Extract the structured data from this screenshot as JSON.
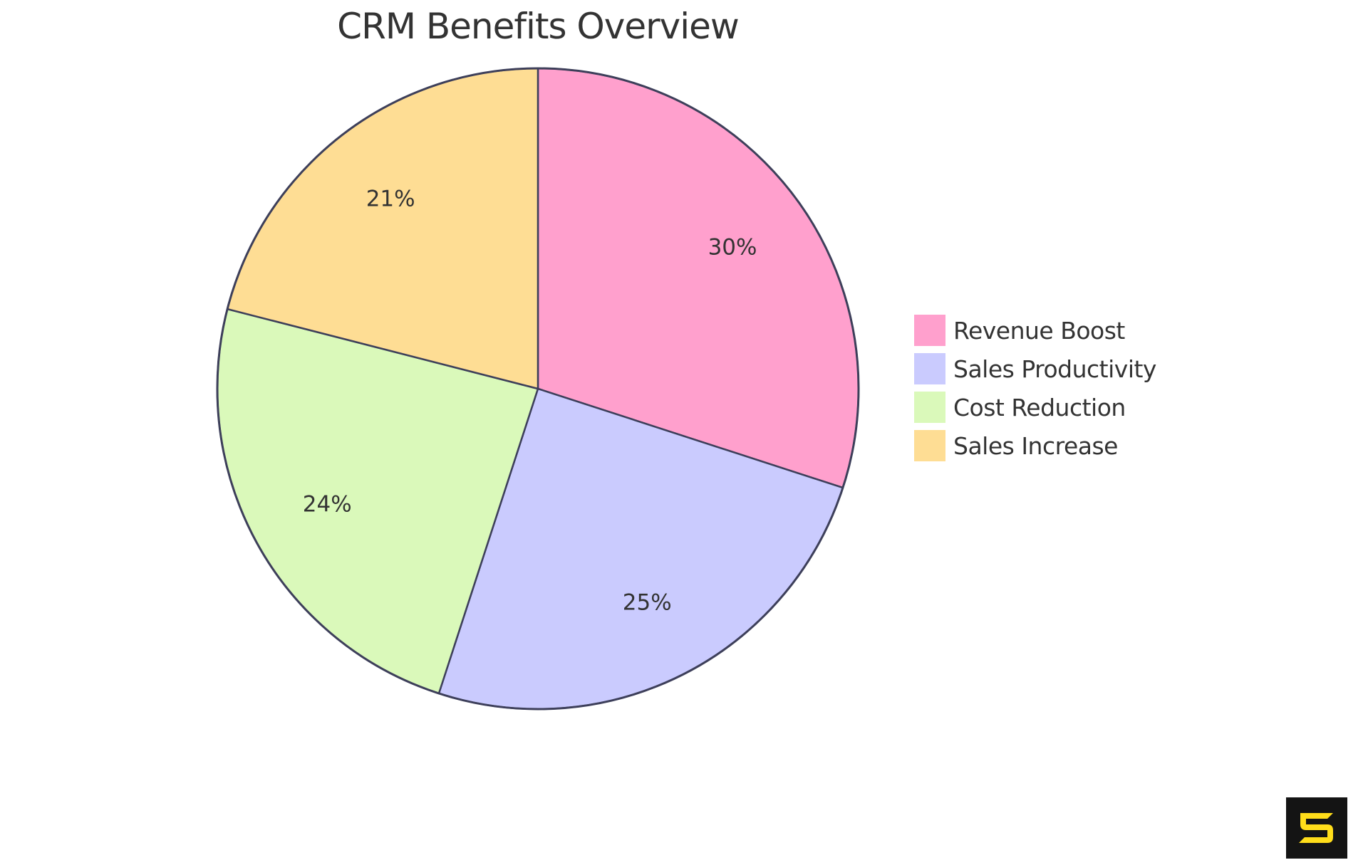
{
  "chart_data": {
    "type": "pie",
    "title": "CRM Benefits Overview",
    "categories": [
      "Revenue Boost",
      "Sales Productivity",
      "Cost Reduction",
      "Sales Increase"
    ],
    "values": [
      30,
      25,
      24,
      21
    ],
    "labels": [
      "30%",
      "25%",
      "24%",
      "21%"
    ],
    "colors": [
      "#FFA0CD",
      "#CACBFE",
      "#DAF9BA",
      "#FEDD94"
    ],
    "stroke_color": "#3D3F5A",
    "legend_position": "right",
    "start_angle": "top, clockwise"
  },
  "title": "CRM Benefits Overview",
  "legend": {
    "items": [
      {
        "label": "Revenue Boost",
        "color": "#FFA0CD"
      },
      {
        "label": "Sales Productivity",
        "color": "#CACBFE"
      },
      {
        "label": "Cost Reduction",
        "color": "#DAF9BA"
      },
      {
        "label": "Sales Increase",
        "color": "#FEDD94"
      }
    ]
  },
  "logo": {
    "icon": "brand-s-logo-icon",
    "bg": "#141414",
    "fg": "#FFDD1A"
  }
}
